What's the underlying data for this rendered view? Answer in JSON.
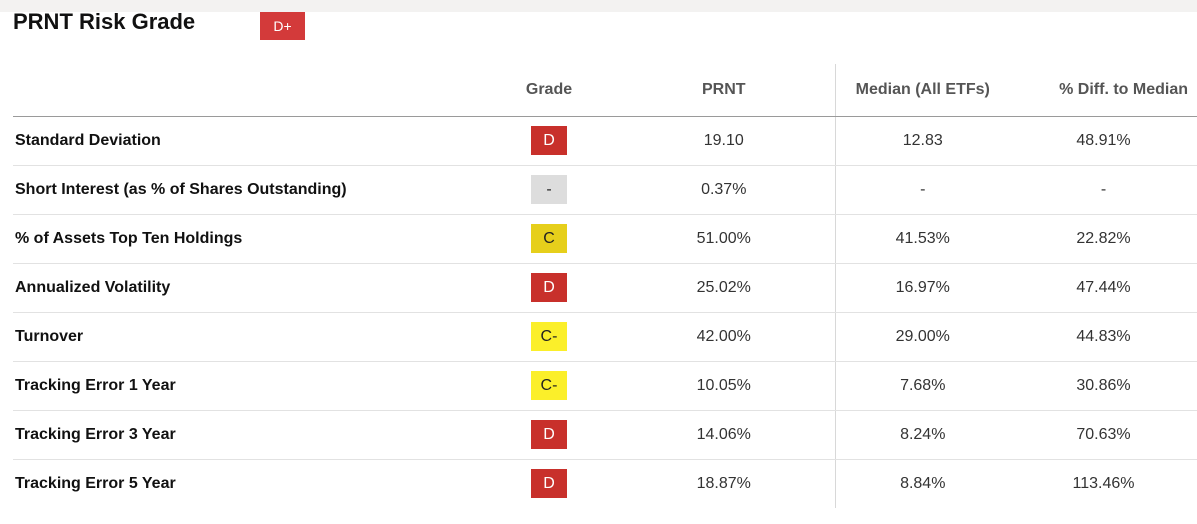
{
  "header": {
    "title": "PRNT Risk Grade",
    "overall_grade": "D+"
  },
  "table": {
    "columns": {
      "metric": "",
      "grade": "Grade",
      "prnt": "PRNT",
      "median": "Median (All ETFs)",
      "diff": "% Diff. to Median"
    },
    "rows": [
      {
        "metric": "Standard Deviation",
        "grade": "D",
        "grade_color": "#c8302b",
        "prnt": "19.10",
        "median": "12.83",
        "diff": "48.91%"
      },
      {
        "metric": "Short Interest (as % of Shares Outstanding)",
        "grade": "-",
        "grade_color": "#dddddd",
        "prnt": "0.37%",
        "median": "-",
        "diff": "-"
      },
      {
        "metric": "% of Assets Top Ten Holdings",
        "grade": "C",
        "grade_color": "#e6cf1b",
        "prnt": "51.00%",
        "median": "41.53%",
        "diff": "22.82%"
      },
      {
        "metric": "Annualized Volatility",
        "grade": "D",
        "grade_color": "#c8302b",
        "prnt": "25.02%",
        "median": "16.97%",
        "diff": "47.44%"
      },
      {
        "metric": "Turnover",
        "grade": "C-",
        "grade_color": "#fbef2a",
        "prnt": "42.00%",
        "median": "29.00%",
        "diff": "44.83%"
      },
      {
        "metric": "Tracking Error 1 Year",
        "grade": "C-",
        "grade_color": "#fbef2a",
        "prnt": "10.05%",
        "median": "7.68%",
        "diff": "30.86%"
      },
      {
        "metric": "Tracking Error 3 Year",
        "grade": "D",
        "grade_color": "#c8302b",
        "prnt": "14.06%",
        "median": "8.24%",
        "diff": "70.63%"
      },
      {
        "metric": "Tracking Error 5 Year",
        "grade": "D",
        "grade_color": "#c8302b",
        "prnt": "18.87%",
        "median": "8.84%",
        "diff": "113.46%"
      }
    ]
  },
  "colors": {
    "overall_badge": "#d33a3a",
    "grade_d": "#c8302b",
    "grade_c": "#e6cf1b",
    "grade_c_minus": "#fbef2a",
    "grade_na": "#dddddd"
  }
}
